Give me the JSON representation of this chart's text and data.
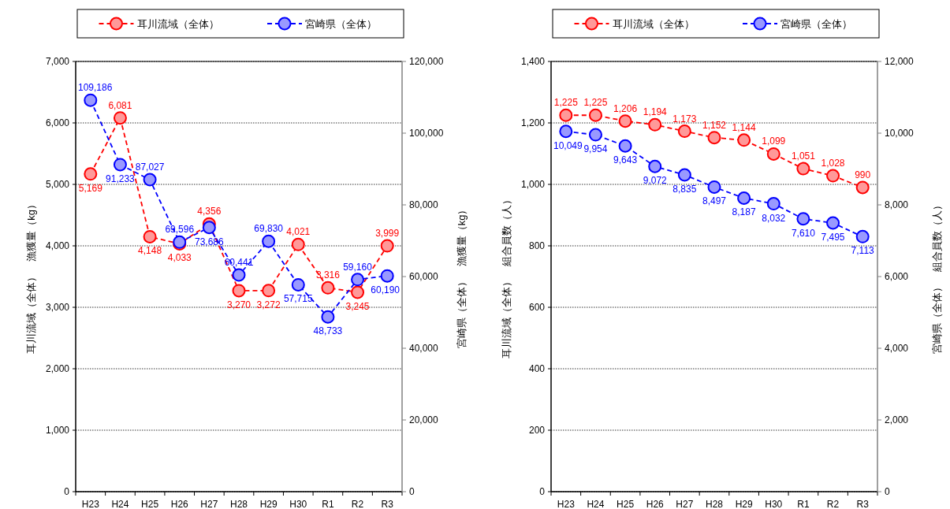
{
  "chart_data": [
    {
      "type": "line",
      "categories": [
        "H23",
        "H24",
        "H25",
        "H26",
        "H27",
        "H28",
        "H29",
        "H30",
        "R1",
        "R2",
        "R3"
      ],
      "ylabel": "耳川流域（全体）　漁獲量（kg）",
      "y2label": "宮崎県（全体）　漁獲量（kg）",
      "ylim": [
        0,
        7000
      ],
      "yticks": [
        0,
        {
          "value": 1000,
          "label": "1,000"
        },
        {
          "value": 2000,
          "label": "2,000"
        },
        {
          "value": 3000,
          "label": "3,000"
        },
        {
          "value": 4000,
          "label": "4,000"
        },
        {
          "value": 5000,
          "label": "5,000"
        },
        {
          "value": 6000,
          "label": "6,000"
        },
        {
          "value": 7000,
          "label": "7,000"
        }
      ],
      "y2lim": [
        0,
        120000
      ],
      "y2ticks": [
        0,
        {
          "value": 20000,
          "label": "20,000"
        },
        {
          "value": 40000,
          "label": "40,000"
        },
        {
          "value": 60000,
          "label": "60,000"
        },
        {
          "value": 80000,
          "label": "80,000"
        },
        {
          "value": 100000,
          "label": "100,000"
        },
        {
          "value": 120000,
          "label": "120,000"
        }
      ],
      "grid": "y",
      "legend": "top",
      "marker": "circle",
      "line_style": "dashed",
      "series": [
        {
          "name": "耳川流域（全体）",
          "color": "#ff0000",
          "values": [
            5169,
            6081,
            4148,
            4033,
            4356,
            3270,
            3272,
            4021,
            3316,
            3245,
            3999
          ],
          "value_labels": [
            "5,169",
            "6,081",
            "4,148",
            "4,033",
            "4,356",
            "3,270",
            "3,272",
            "4,021",
            "3,316",
            "3,245",
            "3,999"
          ]
        },
        {
          "name": "宮崎県（全体）",
          "color": "#0000ff",
          "axis": "y2",
          "values": [
            109186,
            91233,
            87027,
            69596,
            73686,
            60441,
            69830,
            57715,
            48733,
            59160,
            60190
          ],
          "value_labels": [
            "109,186",
            "91,233",
            "87,027",
            "69,596",
            "73,686",
            "60,441",
            "69,830",
            "57,715",
            "48,733",
            "59,160",
            "60,190"
          ]
        }
      ]
    },
    {
      "type": "line",
      "categories": [
        "H23",
        "H24",
        "H25",
        "H26",
        "H27",
        "H28",
        "H29",
        "H30",
        "R1",
        "R2",
        "R3"
      ],
      "ylabel": "耳川流域（全体）　組合員数（人）",
      "y2label": "宮崎県（全体）　組合員数（人）",
      "ylim": [
        0,
        1400
      ],
      "yticks": [
        0,
        200,
        400,
        600,
        800,
        {
          "value": 1000,
          "label": "1,000"
        },
        {
          "value": 1200,
          "label": "1,200"
        },
        {
          "value": 1400,
          "label": "1,400"
        }
      ],
      "y2lim": [
        0,
        12000
      ],
      "y2ticks": [
        0,
        {
          "value": 2000,
          "label": "2,000"
        },
        {
          "value": 4000,
          "label": "4,000"
        },
        {
          "value": 6000,
          "label": "6,000"
        },
        {
          "value": 8000,
          "label": "8,000"
        },
        {
          "value": 10000,
          "label": "10,000"
        },
        {
          "value": 12000,
          "label": "12,000"
        }
      ],
      "grid": "y",
      "legend": "top",
      "marker": "circle",
      "line_style": "dashed",
      "series": [
        {
          "name": "耳川流域（全体）",
          "color": "#ff0000",
          "values": [
            1225,
            1225,
            1206,
            1194,
            1173,
            1152,
            1144,
            1099,
            1051,
            1028,
            990
          ],
          "value_labels": [
            "1,225",
            "1,225",
            "1,206",
            "1,194",
            "1,173",
            "1,152",
            "1,144",
            "1,099",
            "1,051",
            "1,028",
            "990"
          ]
        },
        {
          "name": "宮崎県（全体）",
          "color": "#0000ff",
          "axis": "y2",
          "values": [
            10049,
            9954,
            9643,
            9072,
            8835,
            8497,
            8187,
            8032,
            7610,
            7495,
            7113
          ],
          "value_labels": [
            "10,049",
            "9,954",
            "9,643",
            "9,072",
            "8,835",
            "8,497",
            "8,187",
            "8,032",
            "7,610",
            "7,495",
            "7,113"
          ]
        }
      ]
    }
  ]
}
